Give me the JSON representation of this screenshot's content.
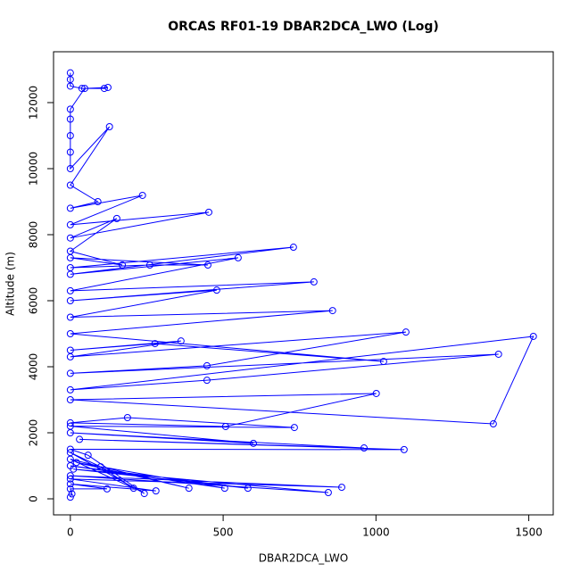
{
  "chart_data": {
    "type": "line",
    "title": "ORCAS RF01-19 DBAR2DCA_LWO (Log)",
    "x_label": "DBAR2DCA_LWO",
    "y_label": "Altitude (m)",
    "color": "#0000ff",
    "markers": true,
    "x": [
      0,
      5,
      0,
      120,
      0,
      280,
      0,
      888,
      0,
      844,
      10,
      581,
      0,
      505,
      20,
      388,
      0,
      207,
      99,
      0,
      242,
      58,
      0,
      1092,
      30,
      961,
      0,
      599,
      0,
      733,
      187,
      0,
      508,
      1001,
      0,
      1384,
      1515,
      0,
      447,
      1401,
      0,
      447,
      1098,
      0,
      362,
      0,
      277,
      1025,
      0,
      858,
      0,
      479,
      0,
      797,
      0,
      549,
      0,
      730,
      0,
      260,
      450,
      0,
      170,
      0,
      152,
      0,
      453,
      0,
      236,
      0,
      90,
      0,
      128,
      0,
      0,
      0,
      0,
      0,
      47,
      123,
      111,
      38,
      0,
      0,
      0
    ],
    "values": [
      50,
      150,
      300,
      300,
      450,
      240,
      600,
      350,
      700,
      190,
      900,
      320,
      1000,
      320,
      1100,
      320,
      1200,
      320,
      970,
      1400,
      160,
      1320,
      1500,
      1490,
      1800,
      1540,
      2000,
      1680,
      2200,
      2160,
      2460,
      2300,
      2190,
      3190,
      3000,
      2270,
      4920,
      3300,
      3590,
      4380,
      3800,
      4030,
      5050,
      4300,
      4780,
      4500,
      4700,
      4160,
      5000,
      5700,
      5500,
      6320,
      6000,
      6570,
      6300,
      7300,
      6800,
      7620,
      7000,
      7080,
      7080,
      7300,
      7080,
      7500,
      8490,
      7900,
      8680,
      8300,
      9190,
      8800,
      9000,
      9500,
      11270,
      10000,
      10500,
      11000,
      11500,
      11800,
      12430,
      12460,
      12430,
      12430,
      12500,
      12700,
      12900
    ],
    "xlim": [
      -55,
      1580
    ],
    "ylim": [
      -486,
      13540
    ],
    "xticks": [
      0,
      500,
      1000,
      1500
    ],
    "yticks": [
      0,
      2000,
      4000,
      6000,
      8000,
      10000,
      12000
    ]
  }
}
